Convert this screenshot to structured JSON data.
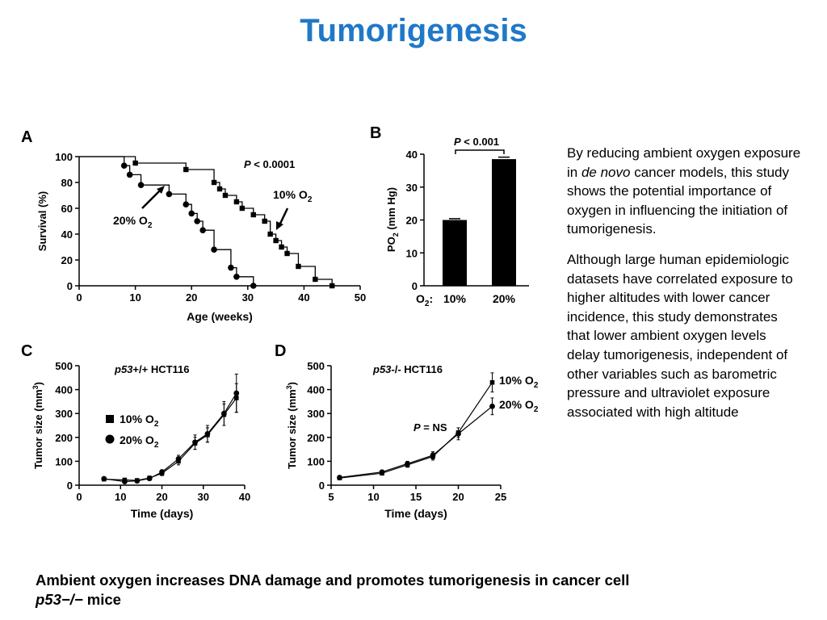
{
  "title": "Tumorigenesis",
  "side_text": {
    "p1_a": "By reducing ambient oxygen exposure in ",
    "p1_em": "de novo",
    "p1_b": " cancer models, this study shows the potential importance of oxygen in influencing the initiation of tumorigenesis.",
    "p2": "Although large human epidemiologic datasets have correlated exposure to higher altitudes with lower cancer incidence, this study demonstrates that lower ambient oxygen levels delay tumorigenesis, independent of other variables such as barometric pressure and ultraviolet exposure associated with high altitude"
  },
  "caption": {
    "line1": "Ambient oxygen increases DNA damage and promotes tumorigenesis in cancer cell",
    "line2_em": "p53−/−",
    "line2_b": " mice"
  },
  "chart_data": [
    {
      "panel": "A",
      "type": "line",
      "xlabel": "Age (weeks)",
      "ylabel": "Survival (%)",
      "xlim": [
        0,
        50
      ],
      "ylim": [
        0,
        100
      ],
      "xticks": [
        0,
        10,
        20,
        30,
        40,
        50
      ],
      "yticks": [
        0,
        20,
        40,
        60,
        80,
        100
      ],
      "annotation": "< 0.0001",
      "annotation_p": "P",
      "series": [
        {
          "name": "10% O2",
          "marker": "square",
          "x": [
            0,
            10,
            19,
            24,
            25,
            26,
            28,
            29,
            31,
            33,
            34,
            35,
            36,
            37,
            39,
            42,
            45
          ],
          "y": [
            100,
            95,
            90,
            80,
            75,
            70,
            65,
            60,
            55,
            50,
            40,
            35,
            30,
            25,
            15,
            5,
            0
          ]
        },
        {
          "name": "20% O2",
          "marker": "circle",
          "x": [
            0,
            8,
            9,
            11,
            16,
            19,
            20,
            21,
            22,
            24,
            27,
            28,
            31
          ],
          "y": [
            100,
            93,
            86,
            78,
            71,
            63,
            56,
            50,
            43,
            28,
            14,
            7,
            0
          ]
        }
      ]
    },
    {
      "panel": "B",
      "type": "bar",
      "ylabel": "PO2 (mm Hg)",
      "xlabel_prefix": "O2:",
      "categories": [
        "10%",
        "20%"
      ],
      "values": [
        20,
        38.5
      ],
      "errors": [
        0.4,
        0.6
      ],
      "ylim": [
        0,
        40
      ],
      "yticks": [
        0,
        10,
        20,
        30,
        40
      ],
      "annotation": "< 0.001",
      "annotation_p": "P"
    },
    {
      "panel": "C",
      "type": "line",
      "title_em": "p53",
      "title_rest": "+/+ HCT116",
      "xlabel": "Time (days)",
      "ylabel": "Tumor size (mm3)",
      "xlim": [
        0,
        40
      ],
      "ylim": [
        0,
        500
      ],
      "xticks": [
        0,
        10,
        20,
        30,
        40
      ],
      "yticks": [
        0,
        100,
        200,
        300,
        400,
        500
      ],
      "series": [
        {
          "name": "10% O2",
          "marker": "square",
          "x": [
            6,
            11,
            14,
            17,
            20,
            24,
            28,
            31,
            35,
            38
          ],
          "y": [
            25,
            22,
            20,
            30,
            50,
            100,
            175,
            210,
            295,
            365
          ],
          "err": [
            5,
            5,
            5,
            8,
            10,
            15,
            25,
            30,
            45,
            60
          ]
        },
        {
          "name": "20% O2",
          "marker": "circle",
          "x": [
            6,
            11,
            14,
            17,
            20,
            24,
            28,
            31,
            35,
            38
          ],
          "y": [
            27,
            15,
            18,
            28,
            55,
            110,
            180,
            215,
            300,
            385
          ],
          "err": [
            5,
            5,
            5,
            8,
            10,
            15,
            30,
            35,
            50,
            80
          ]
        }
      ]
    },
    {
      "panel": "D",
      "type": "line",
      "title_em": "p53",
      "title_rest": "-/- HCT116",
      "xlabel": "Time (days)",
      "ylabel": "Tumor size (mm3)",
      "xlim": [
        5,
        25
      ],
      "ylim": [
        0,
        500
      ],
      "xticks": [
        5,
        10,
        15,
        20,
        25
      ],
      "yticks": [
        0,
        100,
        200,
        300,
        400,
        500
      ],
      "annotation": "= NS",
      "annotation_p": "P",
      "series": [
        {
          "name": "10% O2",
          "marker": "square",
          "x": [
            6,
            11,
            14,
            17,
            20,
            24
          ],
          "y": [
            30,
            50,
            85,
            120,
            220,
            430
          ],
          "err": [
            5,
            8,
            10,
            15,
            20,
            40
          ]
        },
        {
          "name": "20% O2",
          "marker": "circle",
          "x": [
            6,
            11,
            14,
            17,
            20,
            24
          ],
          "y": [
            32,
            55,
            90,
            125,
            215,
            330
          ],
          "err": [
            5,
            8,
            10,
            15,
            25,
            35
          ]
        }
      ]
    }
  ],
  "panel_letters": [
    "A",
    "B",
    "C",
    "D"
  ],
  "legend": {
    "label_10": "10% O",
    "label_20": "20% O",
    "sub": "2"
  }
}
